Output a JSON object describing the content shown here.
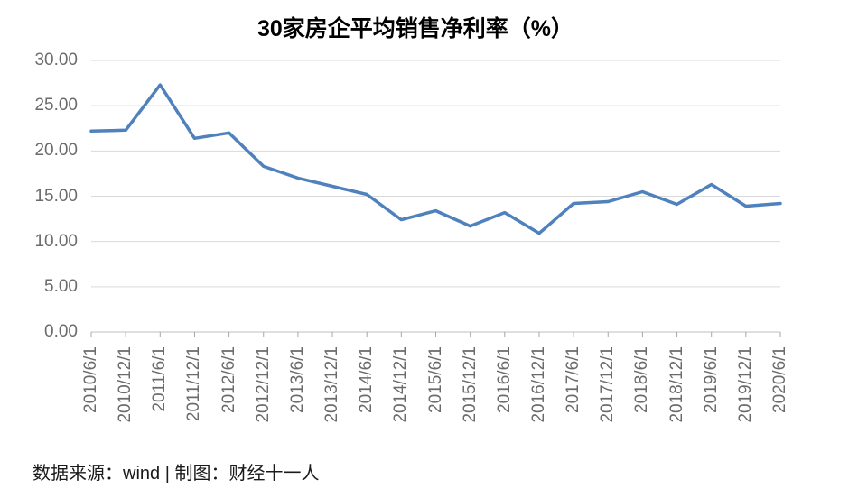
{
  "chart_data": {
    "type": "line",
    "title": "30家房企平均销售净利率（%）",
    "x": [
      "2010/6/1",
      "2010/12/1",
      "2011/6/1",
      "2011/12/1",
      "2012/6/1",
      "2012/12/1",
      "2013/6/1",
      "2013/12/1",
      "2014/6/1",
      "2014/12/1",
      "2015/6/1",
      "2015/12/1",
      "2016/6/1",
      "2016/12/1",
      "2017/6/1",
      "2017/12/1",
      "2018/6/1",
      "2018/12/1",
      "2019/6/1",
      "2019/12/1",
      "2020/6/1"
    ],
    "values": [
      22.2,
      22.3,
      27.3,
      21.4,
      22.0,
      18.3,
      17.0,
      16.1,
      15.2,
      12.4,
      13.4,
      11.7,
      13.2,
      10.9,
      14.2,
      14.4,
      15.5,
      14.1,
      16.3,
      13.9,
      14.2
    ],
    "ylim": [
      0,
      30
    ],
    "yticks": [
      {
        "value": 30,
        "label": "30.00"
      },
      {
        "value": 25,
        "label": "25.00"
      },
      {
        "value": 20,
        "label": "20.00"
      },
      {
        "value": 15,
        "label": "15.00"
      },
      {
        "value": 10,
        "label": "10.00"
      },
      {
        "value": 5,
        "label": "5.00"
      },
      {
        "value": 0,
        "label": "0.00"
      }
    ],
    "xlabel": "",
    "ylabel": "",
    "grid": true,
    "legend": false
  },
  "footer": {
    "text": "数据来源：wind | 制图：财经十一人"
  },
  "colors": {
    "line": "#4F81BD",
    "gridline": "#D9D9D9",
    "axis": "#BFBFBF",
    "tick": "#A6A6A6",
    "axis_labels": "#6B6B6B",
    "title": "#000000",
    "footer": "#1A1A1A",
    "background": "#FFFFFF"
  }
}
